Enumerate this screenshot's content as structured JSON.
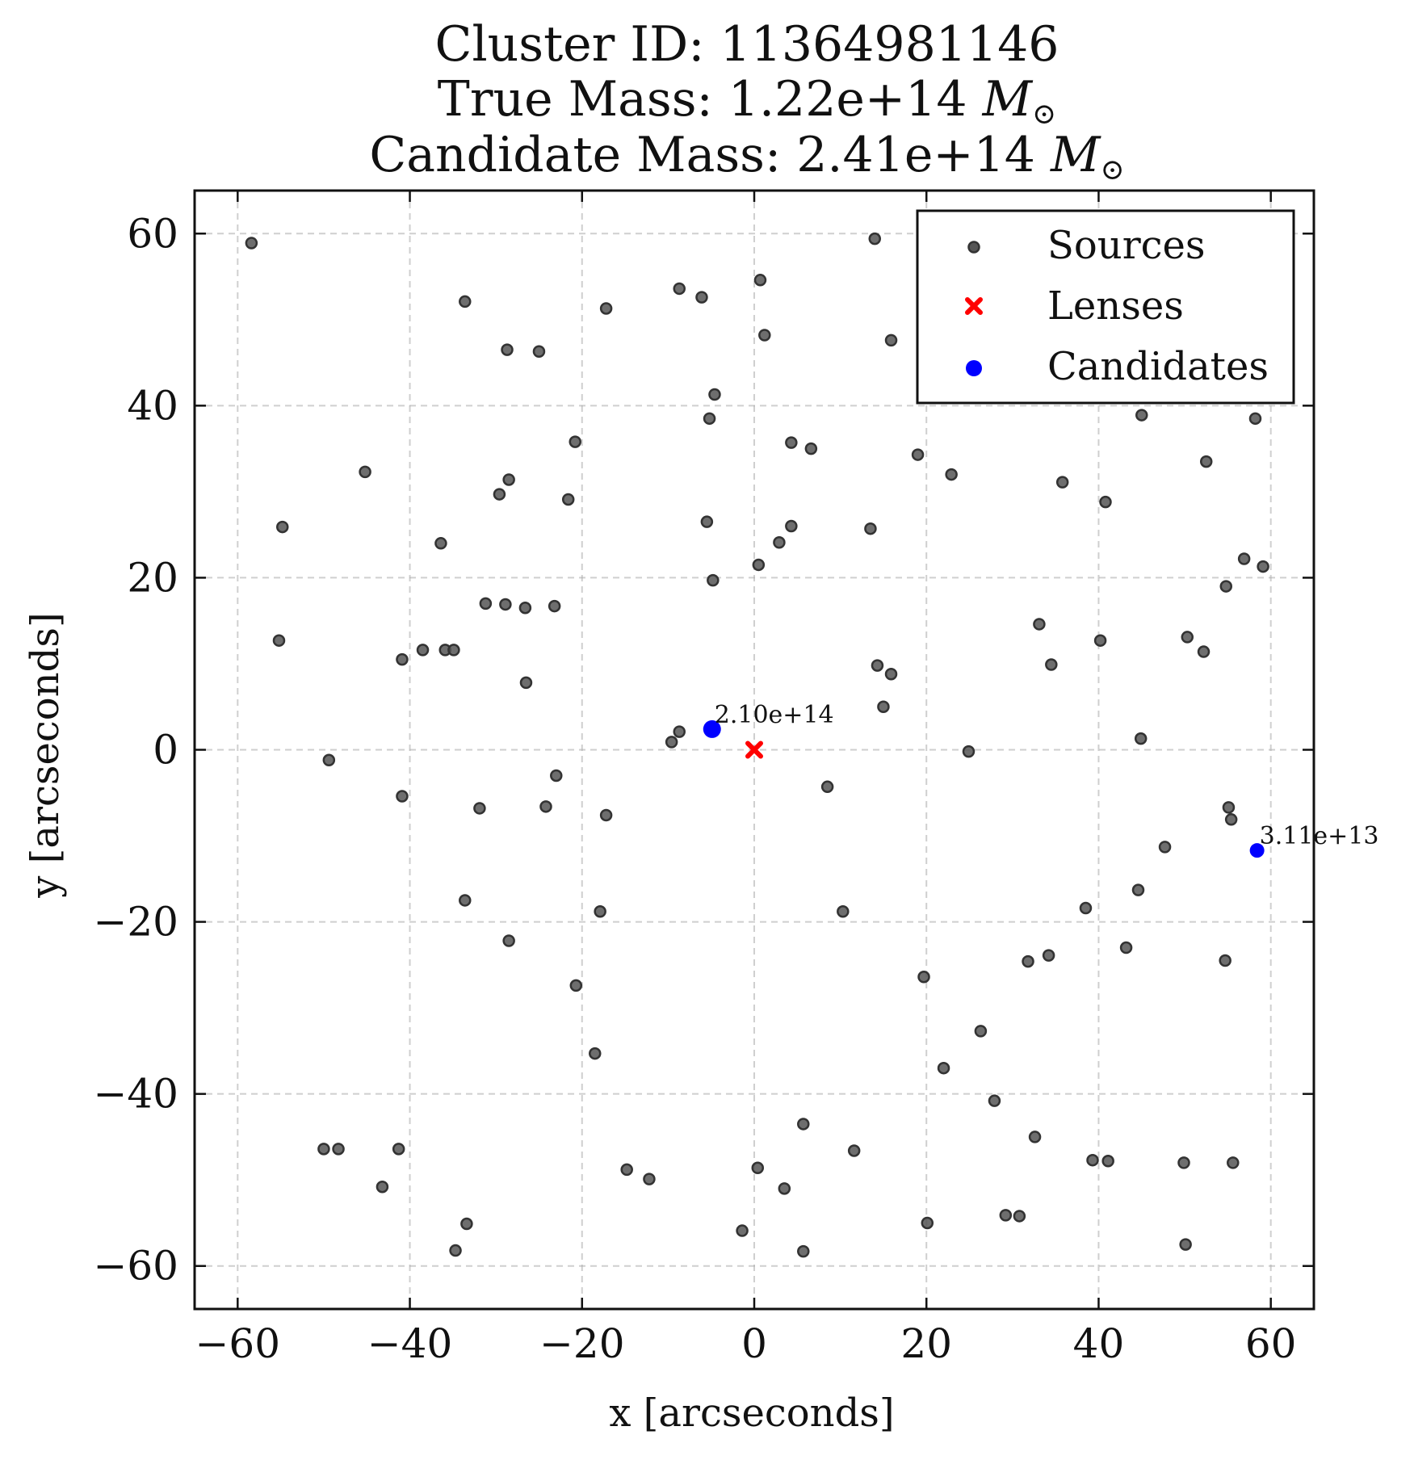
{
  "chart_data": {
    "type": "scatter",
    "title_lines": [
      "Cluster ID: 11364981146",
      "True Mass: 1.22e+14 M⊙",
      "Candidate Mass: 2.41e+14 M⊙"
    ],
    "title": {
      "line1": "Cluster ID: 11364981146",
      "line2_prefix": "True Mass: 1.22e+14 ",
      "line3_prefix": "Candidate Mass: 2.41e+14 ",
      "mass_symbol": "M",
      "mass_subscript": "⊙"
    },
    "xlabel": "x [arcseconds]",
    "ylabel": "y [arcseconds]",
    "xlim": [
      -65,
      65
    ],
    "ylim": [
      -65,
      65
    ],
    "xticks": [
      -60,
      -40,
      -20,
      0,
      20,
      40,
      60
    ],
    "yticks": [
      -60,
      -40,
      -20,
      0,
      20,
      40,
      60
    ],
    "xtick_labels": [
      "−60",
      "−40",
      "−20",
      "0",
      "20",
      "40",
      "60"
    ],
    "ytick_labels": [
      "−60",
      "−40",
      "−20",
      "0",
      "20",
      "40",
      "60"
    ],
    "grid": true,
    "legend": {
      "placement": "upper right",
      "entries": [
        "Sources",
        "Lenses",
        "Candidates"
      ]
    },
    "colors": {
      "sources": "#555555",
      "lenses": "#ff0000",
      "candidates": "#0000ff"
    },
    "series": [
      {
        "name": "Sources",
        "marker": "circle",
        "points": [
          [
            -58.4,
            58.9
          ],
          [
            14.0,
            59.4
          ],
          [
            0.7,
            54.6
          ],
          [
            -8.7,
            53.6
          ],
          [
            -6.1,
            52.6
          ],
          [
            -33.6,
            52.1
          ],
          [
            -17.2,
            51.3
          ],
          [
            1.2,
            48.2
          ],
          [
            15.9,
            47.6
          ],
          [
            -28.7,
            46.5
          ],
          [
            -25.0,
            46.3
          ],
          [
            -4.6,
            41.3
          ],
          [
            -5.2,
            38.5
          ],
          [
            45.0,
            38.9
          ],
          [
            58.2,
            38.5
          ],
          [
            -20.8,
            35.8
          ],
          [
            4.3,
            35.7
          ],
          [
            6.6,
            35.0
          ],
          [
            19.0,
            34.3
          ],
          [
            52.5,
            33.5
          ],
          [
            -45.2,
            32.3
          ],
          [
            22.9,
            32.0
          ],
          [
            -28.5,
            31.4
          ],
          [
            35.8,
            31.1
          ],
          [
            -29.6,
            29.7
          ],
          [
            -21.6,
            29.1
          ],
          [
            40.8,
            28.8
          ],
          [
            -54.8,
            25.9
          ],
          [
            -5.5,
            26.5
          ],
          [
            4.3,
            26.0
          ],
          [
            13.5,
            25.7
          ],
          [
            -36.4,
            24.0
          ],
          [
            2.9,
            24.1
          ],
          [
            56.9,
            22.2
          ],
          [
            59.1,
            21.3
          ],
          [
            0.5,
            21.5
          ],
          [
            -4.8,
            19.7
          ],
          [
            54.8,
            19.0
          ],
          [
            -31.2,
            17.0
          ],
          [
            -28.9,
            16.9
          ],
          [
            -26.6,
            16.5
          ],
          [
            -23.2,
            16.7
          ],
          [
            33.1,
            14.6
          ],
          [
            50.3,
            13.1
          ],
          [
            -55.2,
            12.7
          ],
          [
            40.2,
            12.7
          ],
          [
            -38.5,
            11.6
          ],
          [
            -35.9,
            11.6
          ],
          [
            -34.9,
            11.6
          ],
          [
            52.2,
            11.4
          ],
          [
            -40.9,
            10.5
          ],
          [
            14.3,
            9.8
          ],
          [
            34.5,
            9.9
          ],
          [
            15.9,
            8.8
          ],
          [
            -26.5,
            7.8
          ],
          [
            15.0,
            5.0
          ],
          [
            -8.7,
            2.1
          ],
          [
            -9.6,
            0.9
          ],
          [
            44.9,
            1.3
          ],
          [
            24.9,
            -0.2
          ],
          [
            -49.4,
            -1.2
          ],
          [
            -23.0,
            -3.0
          ],
          [
            8.5,
            -4.3
          ],
          [
            -40.9,
            -5.4
          ],
          [
            -24.2,
            -6.6
          ],
          [
            -31.9,
            -6.8
          ],
          [
            55.1,
            -6.7
          ],
          [
            -17.2,
            -7.6
          ],
          [
            55.4,
            -8.1
          ],
          [
            47.7,
            -11.3
          ],
          [
            44.6,
            -16.3
          ],
          [
            -33.6,
            -17.5
          ],
          [
            38.5,
            -18.4
          ],
          [
            -17.9,
            -18.8
          ],
          [
            10.3,
            -18.8
          ],
          [
            -28.5,
            -22.2
          ],
          [
            43.2,
            -23.0
          ],
          [
            34.2,
            -23.9
          ],
          [
            31.8,
            -24.6
          ],
          [
            54.7,
            -24.5
          ],
          [
            19.7,
            -26.4
          ],
          [
            -20.7,
            -27.4
          ],
          [
            26.3,
            -32.7
          ],
          [
            -18.5,
            -35.3
          ],
          [
            22.0,
            -37.0
          ],
          [
            27.9,
            -40.8
          ],
          [
            5.7,
            -43.5
          ],
          [
            32.6,
            -45.0
          ],
          [
            -50.0,
            -46.4
          ],
          [
            -48.3,
            -46.4
          ],
          [
            -41.3,
            -46.4
          ],
          [
            11.6,
            -46.6
          ],
          [
            39.3,
            -47.7
          ],
          [
            41.1,
            -47.8
          ],
          [
            49.9,
            -48.0
          ],
          [
            55.6,
            -48.0
          ],
          [
            0.4,
            -48.6
          ],
          [
            -14.8,
            -48.8
          ],
          [
            -12.2,
            -49.9
          ],
          [
            -43.2,
            -50.8
          ],
          [
            3.5,
            -51.0
          ],
          [
            29.2,
            -54.1
          ],
          [
            30.8,
            -54.2
          ],
          [
            -33.4,
            -55.1
          ],
          [
            20.1,
            -55.0
          ],
          [
            -1.4,
            -55.9
          ],
          [
            50.1,
            -57.5
          ],
          [
            -34.7,
            -58.2
          ],
          [
            5.7,
            -58.3
          ]
        ]
      },
      {
        "name": "Lenses",
        "marker": "x",
        "points": [
          [
            0.0,
            0.0
          ]
        ]
      },
      {
        "name": "Candidates",
        "marker": "circle",
        "points": [
          [
            -4.9,
            2.4
          ],
          [
            58.4,
            -11.7
          ]
        ],
        "labels": [
          "2.10e+14",
          "3.11e+13"
        ]
      }
    ]
  }
}
